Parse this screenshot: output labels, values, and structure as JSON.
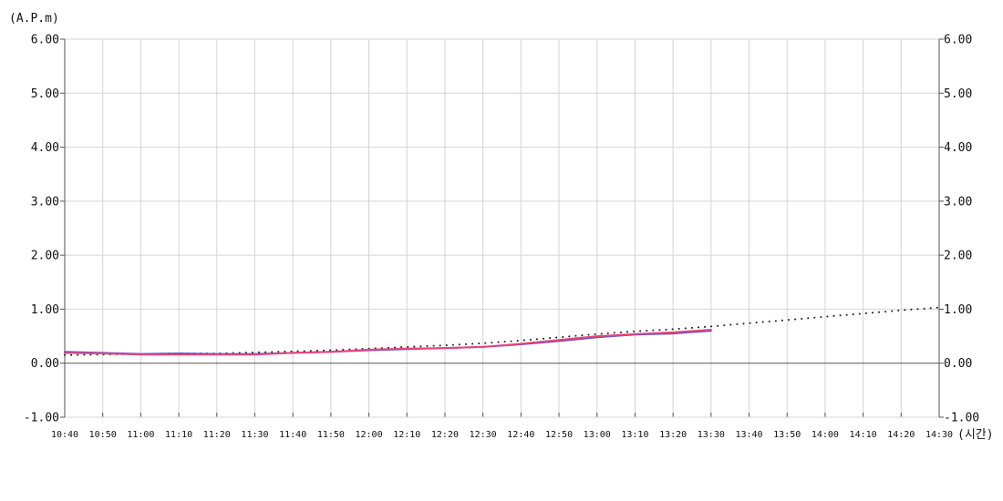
{
  "chart_data": {
    "type": "line",
    "ylabel": "(A.P.m)",
    "xlabel": "(시간)",
    "ylim": [
      -1,
      6
    ],
    "y_ticks": [
      "-1.00",
      "0.00",
      "1.00",
      "2.00",
      "3.00",
      "4.00",
      "5.00",
      "6.00"
    ],
    "y_tick_values": [
      -1,
      0,
      1,
      2,
      3,
      4,
      5,
      6
    ],
    "y_axes": [
      "left",
      "right"
    ],
    "grid": true,
    "categories": [
      "10:40",
      "10:50",
      "11:00",
      "11:10",
      "11:20",
      "11:30",
      "11:40",
      "11:50",
      "12:00",
      "12:10",
      "12:20",
      "12:30",
      "12:40",
      "12:50",
      "13:00",
      "13:10",
      "13:20",
      "13:30",
      "13:40",
      "13:50",
      "14:00",
      "14:10",
      "14:20",
      "14:30"
    ],
    "series": [
      {
        "color": "#5b4fcf",
        "style": "solid",
        "values": [
          0.21,
          0.19,
          0.17,
          0.18,
          0.17,
          0.17,
          0.19,
          0.21,
          0.24,
          0.26,
          0.28,
          0.3,
          0.35,
          0.41,
          0.48,
          0.53,
          0.55,
          0.6,
          null,
          null,
          null,
          null,
          null,
          null
        ]
      },
      {
        "color": "#e8457a",
        "style": "solid",
        "values": [
          0.19,
          0.18,
          0.16,
          0.16,
          0.16,
          0.16,
          0.19,
          0.21,
          0.25,
          0.27,
          0.28,
          0.3,
          0.36,
          0.43,
          0.5,
          0.54,
          0.57,
          0.62,
          null,
          null,
          null,
          null,
          null,
          null
        ]
      },
      {
        "color": "#222222",
        "style": "dotted",
        "values": [
          0.15,
          0.16,
          0.17,
          0.18,
          0.18,
          0.2,
          0.22,
          0.24,
          0.27,
          0.3,
          0.33,
          0.37,
          0.42,
          0.48,
          0.54,
          0.59,
          0.63,
          0.68,
          0.74,
          0.8,
          0.86,
          0.92,
          0.98,
          1.03
        ]
      }
    ]
  }
}
